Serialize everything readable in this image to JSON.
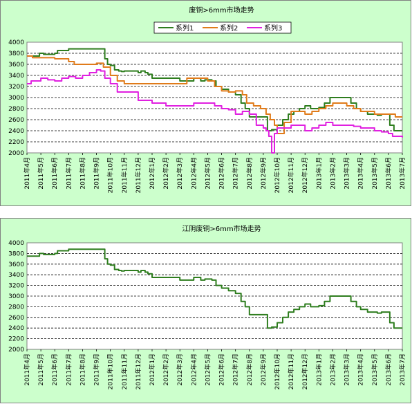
{
  "chart_data": [
    {
      "type": "line",
      "title": "废铜>6mm市场走势",
      "ylim": [
        2000,
        4000
      ],
      "yticks": [
        2000,
        2200,
        2400,
        2600,
        2800,
        3000,
        3200,
        3400,
        3600,
        3800,
        4000
      ],
      "x_labels": [
        "2011年4月",
        "2011年5月",
        "2011年6月",
        "2011年7月",
        "2011年8月",
        "2011年9月",
        "2011年10月",
        "2011年11月",
        "2011年12月",
        "2012年1月",
        "2012年2月",
        "2012年3月",
        "2012年4月",
        "2012年5月",
        "2012年6月",
        "2012年7月",
        "2012年8月",
        "2012年9月",
        "2012年10月",
        "2012年11月",
        "2012年12月",
        "2013年1月",
        "2013年2月",
        "2013年3月",
        "2013年4月",
        "2013年5月",
        "2013年6月",
        "2013年7月"
      ],
      "grid": "horizontal-dashed",
      "legend_position": "top",
      "series": [
        {
          "name": "系列1",
          "color": "#2e7d1e",
          "x": [
            0,
            0.9,
            1.2,
            2.0,
            2.2,
            3.0,
            3.3,
            4.0,
            5.3,
            5.6,
            5.8,
            6.0,
            6.3,
            6.6,
            6.8,
            7.0,
            8.0,
            8.2,
            8.5,
            8.7,
            9.0,
            10.0,
            11.0,
            12.0,
            12.5,
            12.8,
            13.3,
            13.6,
            14.0,
            14.5,
            15.0,
            15.4,
            15.7,
            16.0,
            16.5,
            17.0,
            17.3,
            17.6,
            18.0,
            18.4,
            18.8,
            19.2,
            19.6,
            20.0,
            20.4,
            21.0,
            21.4,
            21.8,
            22.5,
            23.0,
            23.3,
            23.7,
            24.0,
            24.5,
            24.9,
            25.2,
            25.5,
            25.8,
            26.1,
            26.4,
            27.0
          ],
          "values": [
            3750,
            3800,
            3780,
            3800,
            3850,
            3880,
            3880,
            3880,
            3880,
            3700,
            3600,
            3580,
            3500,
            3480,
            3470,
            3480,
            3450,
            3480,
            3450,
            3420,
            3350,
            3350,
            3300,
            3350,
            3300,
            3320,
            3300,
            3200,
            3150,
            3100,
            3050,
            2900,
            2800,
            2650,
            2650,
            2650,
            2400,
            2420,
            2500,
            2600,
            2700,
            2750,
            2800,
            2850,
            2800,
            2820,
            2900,
            3000,
            3000,
            3000,
            2900,
            2800,
            2750,
            2700,
            2700,
            2680,
            2700,
            2700,
            2500,
            2400,
            2400
          ]
        },
        {
          "name": "系列2",
          "color": "#e07b1a",
          "x": [
            0,
            0.4,
            1.0,
            2.0,
            3.0,
            3.4,
            4.0,
            4.5,
            5.0,
            5.5,
            6.0,
            6.5,
            7.0,
            8.0,
            9.0,
            10.0,
            10.8,
            11.5,
            12.0,
            12.5,
            13.0,
            13.5,
            14.0,
            14.5,
            15.0,
            15.5,
            15.8,
            16.3,
            16.8,
            17.2,
            17.5,
            17.8,
            18.0,
            18.5,
            19.0,
            19.5,
            20.0,
            20.5,
            21.0,
            21.5,
            22.0,
            22.5,
            23.0,
            23.5,
            24.0,
            24.5,
            25.0,
            25.5,
            26.0,
            26.5,
            27.0
          ],
          "values": [
            3750,
            3720,
            3720,
            3700,
            3650,
            3600,
            3600,
            3600,
            3620,
            3550,
            3400,
            3300,
            3250,
            3250,
            3250,
            3250,
            3250,
            3350,
            3350,
            3350,
            3300,
            3200,
            3120,
            3100,
            3120,
            3050,
            2900,
            2850,
            2800,
            2700,
            2600,
            2500,
            2350,
            2550,
            2750,
            2750,
            2700,
            2750,
            2800,
            2850,
            2900,
            2900,
            2850,
            2800,
            2750,
            2750,
            2700,
            2700,
            2700,
            2650,
            2650
          ]
        },
        {
          "name": "系列3",
          "color": "#e020e0",
          "x": [
            0,
            0.3,
            1.0,
            1.5,
            2.0,
            2.5,
            3.0,
            3.5,
            4.0,
            4.5,
            5.0,
            5.3,
            5.6,
            6.0,
            6.5,
            7.0,
            7.5,
            8.0,
            9.0,
            10.0,
            11.0,
            12.0,
            12.5,
            13.0,
            13.5,
            14.0,
            14.5,
            15.0,
            15.5,
            16.0,
            16.5,
            16.8,
            17.0,
            17.2,
            17.4,
            17.6,
            17.8,
            18.0,
            18.5,
            19.0,
            19.5,
            20.0,
            20.5,
            21.0,
            21.5,
            22.0,
            22.5,
            23.0,
            23.5,
            24.0,
            24.5,
            25.0,
            25.5,
            26.0,
            26.3,
            26.6,
            27.0
          ],
          "values": [
            3250,
            3300,
            3350,
            3320,
            3300,
            3350,
            3380,
            3350,
            3400,
            3450,
            3500,
            3480,
            3350,
            3250,
            3100,
            3100,
            3100,
            2950,
            2900,
            2850,
            2850,
            2900,
            2900,
            2900,
            2850,
            2800,
            2780,
            2700,
            2750,
            2700,
            2500,
            2500,
            2450,
            2400,
            2300,
            2000,
            2350,
            2450,
            2450,
            2500,
            2500,
            2400,
            2450,
            2500,
            2550,
            2500,
            2500,
            2500,
            2480,
            2450,
            2450,
            2400,
            2380,
            2350,
            2300,
            2300,
            2280
          ]
        }
      ]
    },
    {
      "type": "line",
      "title": "江阴废铜>6mm市场走势",
      "ylim": [
        2000,
        4000
      ],
      "yticks": [
        2000,
        2200,
        2400,
        2600,
        2800,
        3000,
        3200,
        3400,
        3600,
        3800,
        4000
      ],
      "x_labels": [
        "2011年4月",
        "2011年5月",
        "2011年6月",
        "2011年7月",
        "2011年8月",
        "2011年9月",
        "2011年10月",
        "2011年11月",
        "2011年12月",
        "2012年1月",
        "2012年2月",
        "2012年3月",
        "2012年4月",
        "2012年5月",
        "2012年6月",
        "2012年7月",
        "2012年8月",
        "2012年9月",
        "2012年10月",
        "2012年11月",
        "2012年12月",
        "2013年1月",
        "2013年2月",
        "2013年3月",
        "2013年4月",
        "2013年5月",
        "2013年6月",
        "2013年7月"
      ],
      "grid": "horizontal-dashed",
      "series": [
        {
          "color": "#2e7d1e",
          "x": [
            0,
            0.9,
            1.2,
            2.0,
            2.2,
            3.0,
            3.3,
            4.0,
            5.3,
            5.6,
            5.8,
            6.0,
            6.3,
            6.6,
            6.8,
            7.0,
            8.0,
            8.2,
            8.5,
            8.7,
            9.0,
            10.0,
            11.0,
            12.0,
            12.5,
            12.8,
            13.3,
            13.6,
            14.0,
            14.5,
            15.0,
            15.4,
            15.7,
            16.0,
            16.5,
            17.0,
            17.3,
            17.6,
            18.0,
            18.4,
            18.8,
            19.2,
            19.6,
            20.0,
            20.4,
            21.0,
            21.4,
            21.8,
            22.5,
            23.0,
            23.3,
            23.7,
            24.0,
            24.5,
            24.9,
            25.2,
            25.5,
            25.8,
            26.1,
            26.4,
            27.0
          ],
          "values": [
            3750,
            3800,
            3780,
            3800,
            3850,
            3880,
            3880,
            3880,
            3880,
            3700,
            3600,
            3580,
            3500,
            3480,
            3470,
            3480,
            3450,
            3480,
            3450,
            3420,
            3350,
            3350,
            3300,
            3350,
            3300,
            3320,
            3300,
            3200,
            3150,
            3100,
            3050,
            2900,
            2800,
            2650,
            2650,
            2650,
            2400,
            2420,
            2500,
            2600,
            2700,
            2750,
            2800,
            2850,
            2800,
            2820,
            2900,
            3000,
            3000,
            3000,
            2900,
            2800,
            2750,
            2700,
            2700,
            2680,
            2700,
            2700,
            2500,
            2400,
            2400
          ]
        }
      ]
    }
  ]
}
